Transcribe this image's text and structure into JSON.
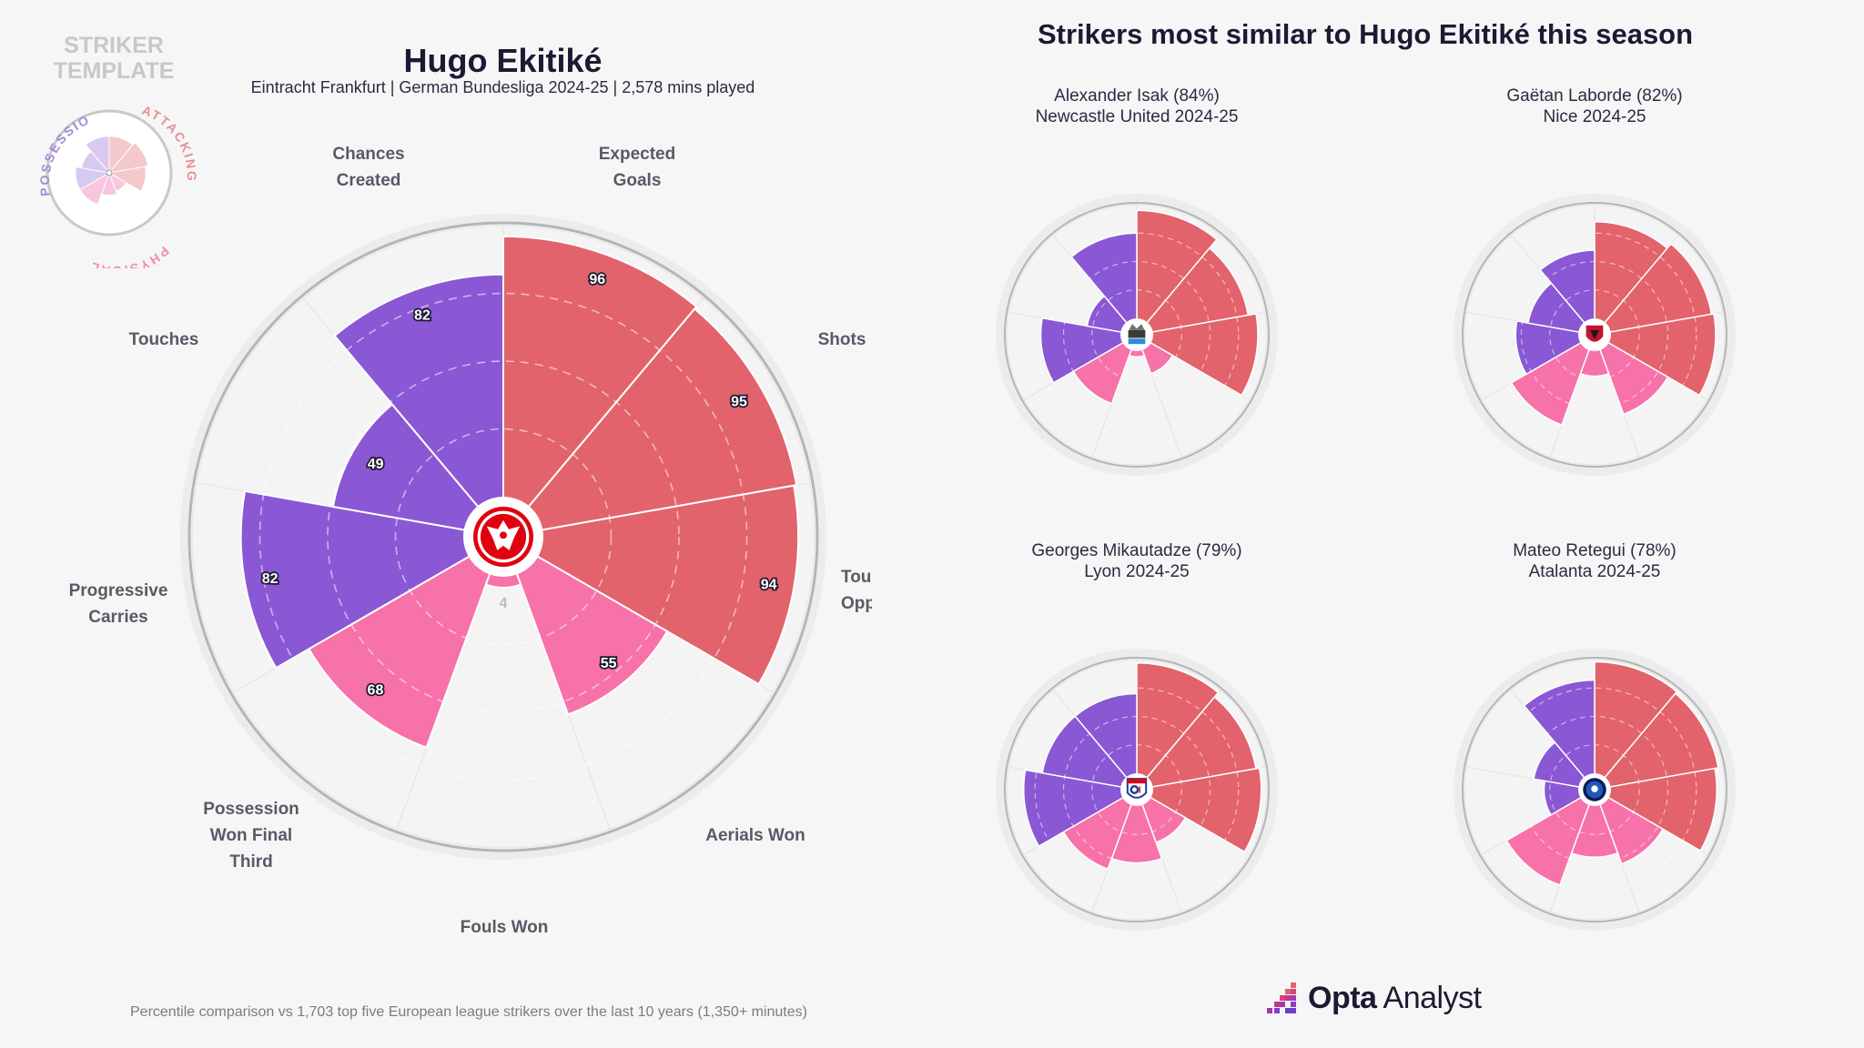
{
  "template": {
    "title_line1": "STRIKER",
    "title_line2": "TEMPLATE",
    "groups": [
      "POSSESSION",
      "ATTACKING",
      "PHYSICAL"
    ]
  },
  "player": {
    "name": "Hugo Ekitiké",
    "subtitle": "Eintracht Frankfurt | German Bundesliga 2024-25 | 2,578 mins played"
  },
  "similar": {
    "title": "Strikers most similar to Hugo Ekitiké this season",
    "players": [
      {
        "name": "Alexander Isak (84%)",
        "team": "Newcastle United 2024-25"
      },
      {
        "name": "Gaëtan Laborde (82%)",
        "team": "Nice 2024-25"
      },
      {
        "name": "Georges Mikautadze (79%)",
        "team": "Lyon 2024-25"
      },
      {
        "name": "Mateo Retegui (78%)",
        "team": "Atalanta 2024-25"
      }
    ]
  },
  "axis_labels": {
    "xg_1": "Expected",
    "xg_2": "Goals",
    "shots": "Shots",
    "touches_opp_1": "Tou",
    "touches_opp_2": "Opp",
    "aerials": "Aerials Won",
    "fouls": "Fouls Won",
    "poss_won_1": "Possession",
    "poss_won_2": "Won Final",
    "poss_won_3": "Third",
    "prog_carries_1": "Progressive",
    "prog_carries_2": "Carries",
    "touches": "Touches",
    "chances_1": "Chances",
    "chances_2": "Created"
  },
  "colors": {
    "attacking": "#e2636b",
    "physical": "#f772a9",
    "possession": "#8a58d4",
    "ring": "#b8b8b8",
    "background": "#f6f6f6"
  },
  "chart_data": [
    {
      "type": "radial_bar",
      "title": "Hugo Ekitiké",
      "categories": [
        "Expected Goals",
        "Shots",
        "Touches in Opp. Box",
        "Aerials Won",
        "Fouls Won",
        "Possession Won Final Third",
        "Progressive Carries",
        "Touches",
        "Chances Created"
      ],
      "groups": [
        "attacking",
        "attacking",
        "attacking",
        "physical",
        "physical",
        "physical",
        "possession",
        "possession",
        "possession"
      ],
      "values": [
        96,
        95,
        94,
        55,
        4,
        68,
        82,
        49,
        82
      ],
      "value_labels": [
        "96",
        "95",
        "94",
        "55",
        "4",
        "68",
        "82",
        "49",
        "82"
      ],
      "rlim": [
        0,
        100
      ]
    },
    {
      "type": "radial_bar",
      "title": "Alexander Isak (84%)",
      "values": [
        95,
        85,
        92,
        22,
        5,
        50,
        70,
        30,
        75
      ]
    },
    {
      "type": "radial_bar",
      "title": "Gaëtan Laborde (82%)",
      "values": [
        85,
        90,
        92,
        60,
        22,
        70,
        55,
        45,
        60
      ]
    },
    {
      "type": "radial_bar",
      "title": "Georges Mikautadze (79%)",
      "values": [
        97,
        92,
        95,
        35,
        50,
        60,
        85,
        70,
        70
      ]
    },
    {
      "type": "radial_bar",
      "title": "Mateo Retegui (78%)",
      "values": [
        98,
        96,
        93,
        55,
        45,
        75,
        30,
        40,
        82
      ]
    }
  ],
  "footnote": "Percentile comparison vs 1,703 top five European league strikers over the last 10 years (1,350+ minutes)",
  "brand": {
    "bold": "Opta",
    "light": " Analyst"
  }
}
